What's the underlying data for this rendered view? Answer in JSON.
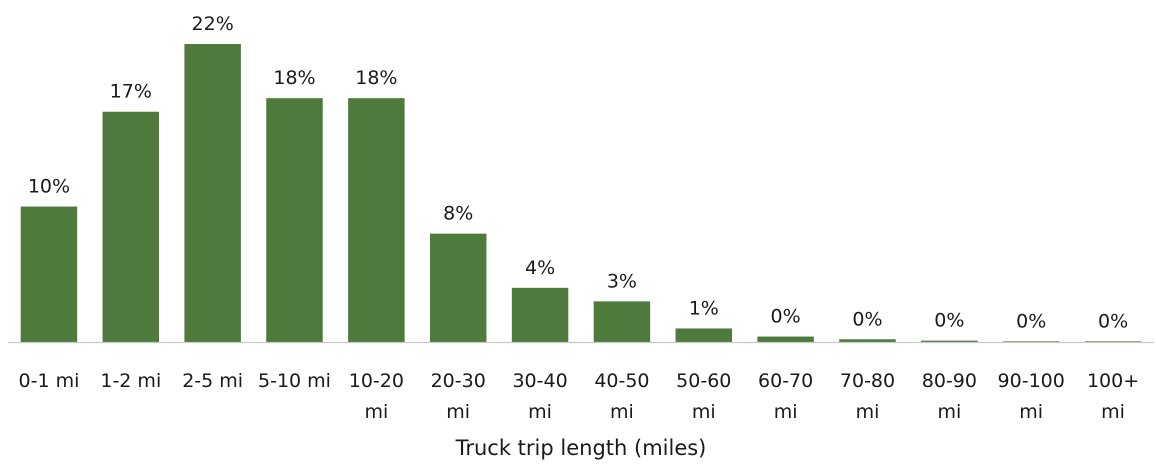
{
  "chart_data": {
    "type": "bar",
    "title": "",
    "xlabel": "Truck trip length (miles)",
    "ylabel": "",
    "ylim": [
      0,
      22
    ],
    "grid": false,
    "legend": "none",
    "bar_color": "#4e7a3c",
    "categories": [
      [
        "0-1 mi"
      ],
      [
        "1-2 mi"
      ],
      [
        "2-5 mi"
      ],
      [
        "5-10 mi"
      ],
      [
        "10-20",
        "mi"
      ],
      [
        "20-30",
        "mi"
      ],
      [
        "30-40",
        "mi"
      ],
      [
        "40-50",
        "mi"
      ],
      [
        "50-60",
        "mi"
      ],
      [
        "60-70",
        "mi"
      ],
      [
        "70-80",
        "mi"
      ],
      [
        "80-90",
        "mi"
      ],
      [
        "90-100",
        "mi"
      ],
      [
        "100+",
        "mi"
      ]
    ],
    "values": [
      10,
      17,
      22,
      18,
      18,
      8,
      4,
      3,
      1,
      0.4,
      0.2,
      0.1,
      0.05,
      0.05
    ],
    "data_labels": [
      "10%",
      "17%",
      "22%",
      "18%",
      "18%",
      "8%",
      "4%",
      "3%",
      "1%",
      "0%",
      "0%",
      "0%",
      "0%",
      "0%"
    ]
  }
}
